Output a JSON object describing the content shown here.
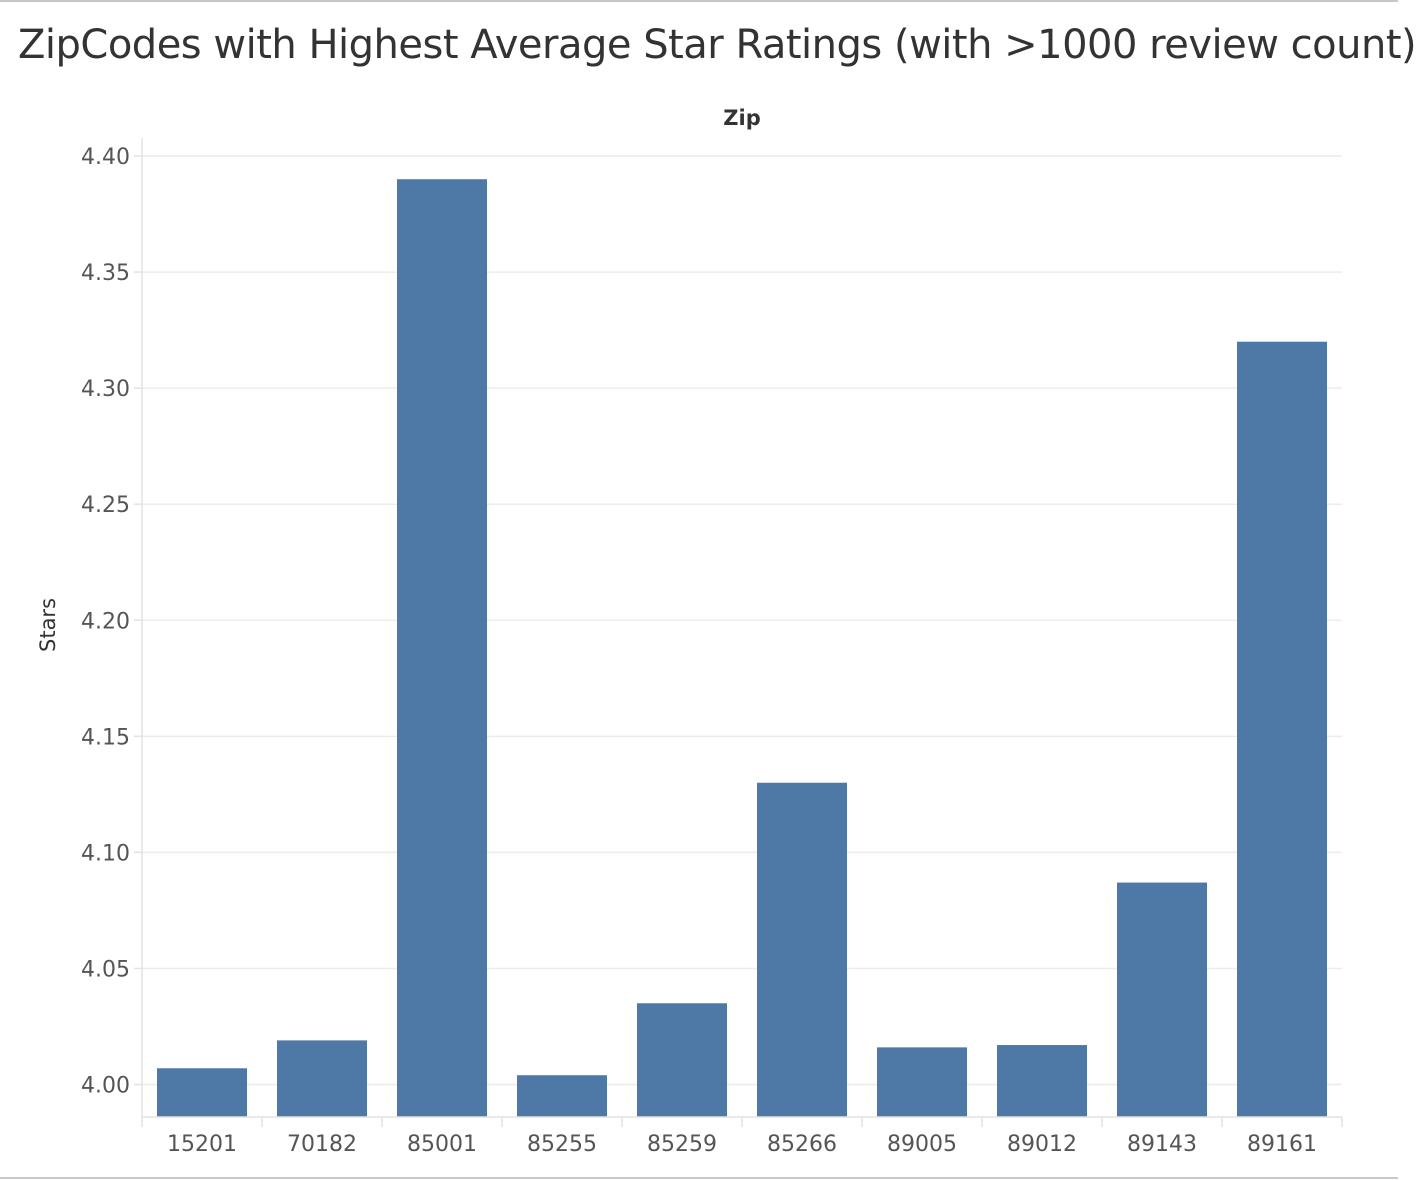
{
  "chart_data": {
    "type": "bar",
    "title": "ZipCodes with Highest Average Star Ratings (with >1000 review count)",
    "column_header": "Zip",
    "xlabel": "",
    "ylabel": "Stars",
    "categories": [
      "15201",
      "70182",
      "85001",
      "85255",
      "85259",
      "85266",
      "89005",
      "89012",
      "89143",
      "89161"
    ],
    "values": [
      4.007,
      4.019,
      4.39,
      4.004,
      4.035,
      4.13,
      4.016,
      4.017,
      4.087,
      4.32
    ],
    "ylim": [
      3.986,
      4.4
    ],
    "yticks": [
      "4.00",
      "4.05",
      "4.10",
      "4.15",
      "4.20",
      "4.25",
      "4.30",
      "4.35",
      "4.40"
    ],
    "grid": true,
    "bar_color": "#4e79a7"
  }
}
